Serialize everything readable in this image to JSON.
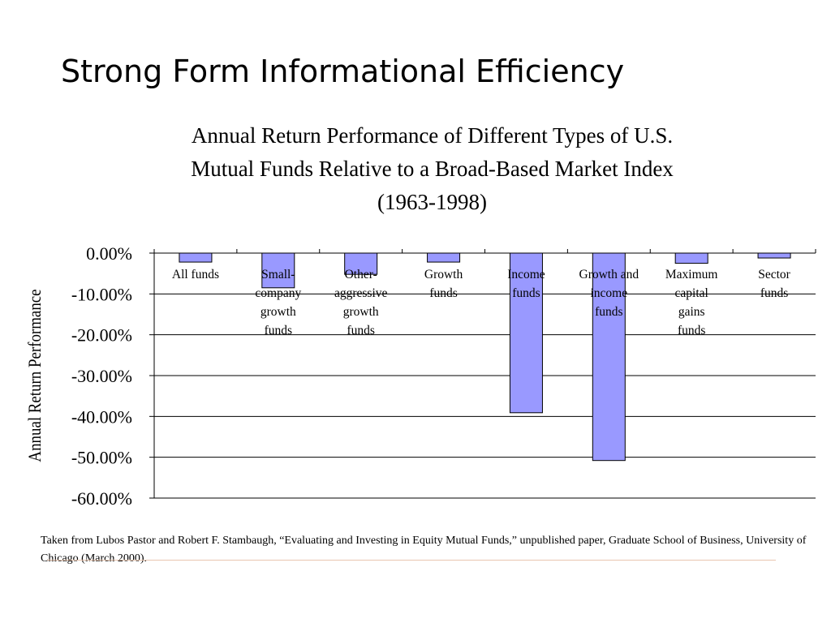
{
  "slide": {
    "title": "Strong Form Informational Efficiency",
    "footnote": "Taken from Lubos Pastor and Robert F. Stambaugh, “Evaluating and Investing in Equity Mutual Funds,” unpublished paper, Graduate School of Business, University of Chicago (March 2000)."
  },
  "chart_data": {
    "type": "bar",
    "title": [
      "Annual Return Performance of Different Types of U.S.",
      "Mutual Funds Relative to a Broad-Based Market Index",
      "(1963-1998)"
    ],
    "xlabel": "",
    "ylabel": "Annual Return Performance",
    "categories": [
      [
        "All funds"
      ],
      [
        "Small-",
        "company",
        "growth",
        "funds"
      ],
      [
        "Other-",
        "aggressive",
        "growth",
        "funds"
      ],
      [
        "Growth",
        "funds"
      ],
      [
        "Income",
        "funds"
      ],
      [
        "Growth and",
        "income",
        "funds"
      ],
      [
        "Maximum",
        "capital",
        "gains",
        "funds"
      ],
      [
        "Sector",
        "funds"
      ]
    ],
    "values": [
      -2.2,
      -8.5,
      -5.2,
      -2.2,
      -39.1,
      -50.8,
      -2.5,
      -1.2
    ],
    "ylim": [
      -60,
      0
    ],
    "yticks": [
      0,
      -10,
      -20,
      -30,
      -40,
      -50,
      -60
    ],
    "ytick_labels": [
      "0.00%",
      "-10.00%",
      "-20.00%",
      "-30.00%",
      "-40.00%",
      "-50.00%",
      "-60.00%"
    ],
    "grid": true,
    "bar_color": "#9999ff",
    "bar_edge_color": "#000000"
  }
}
